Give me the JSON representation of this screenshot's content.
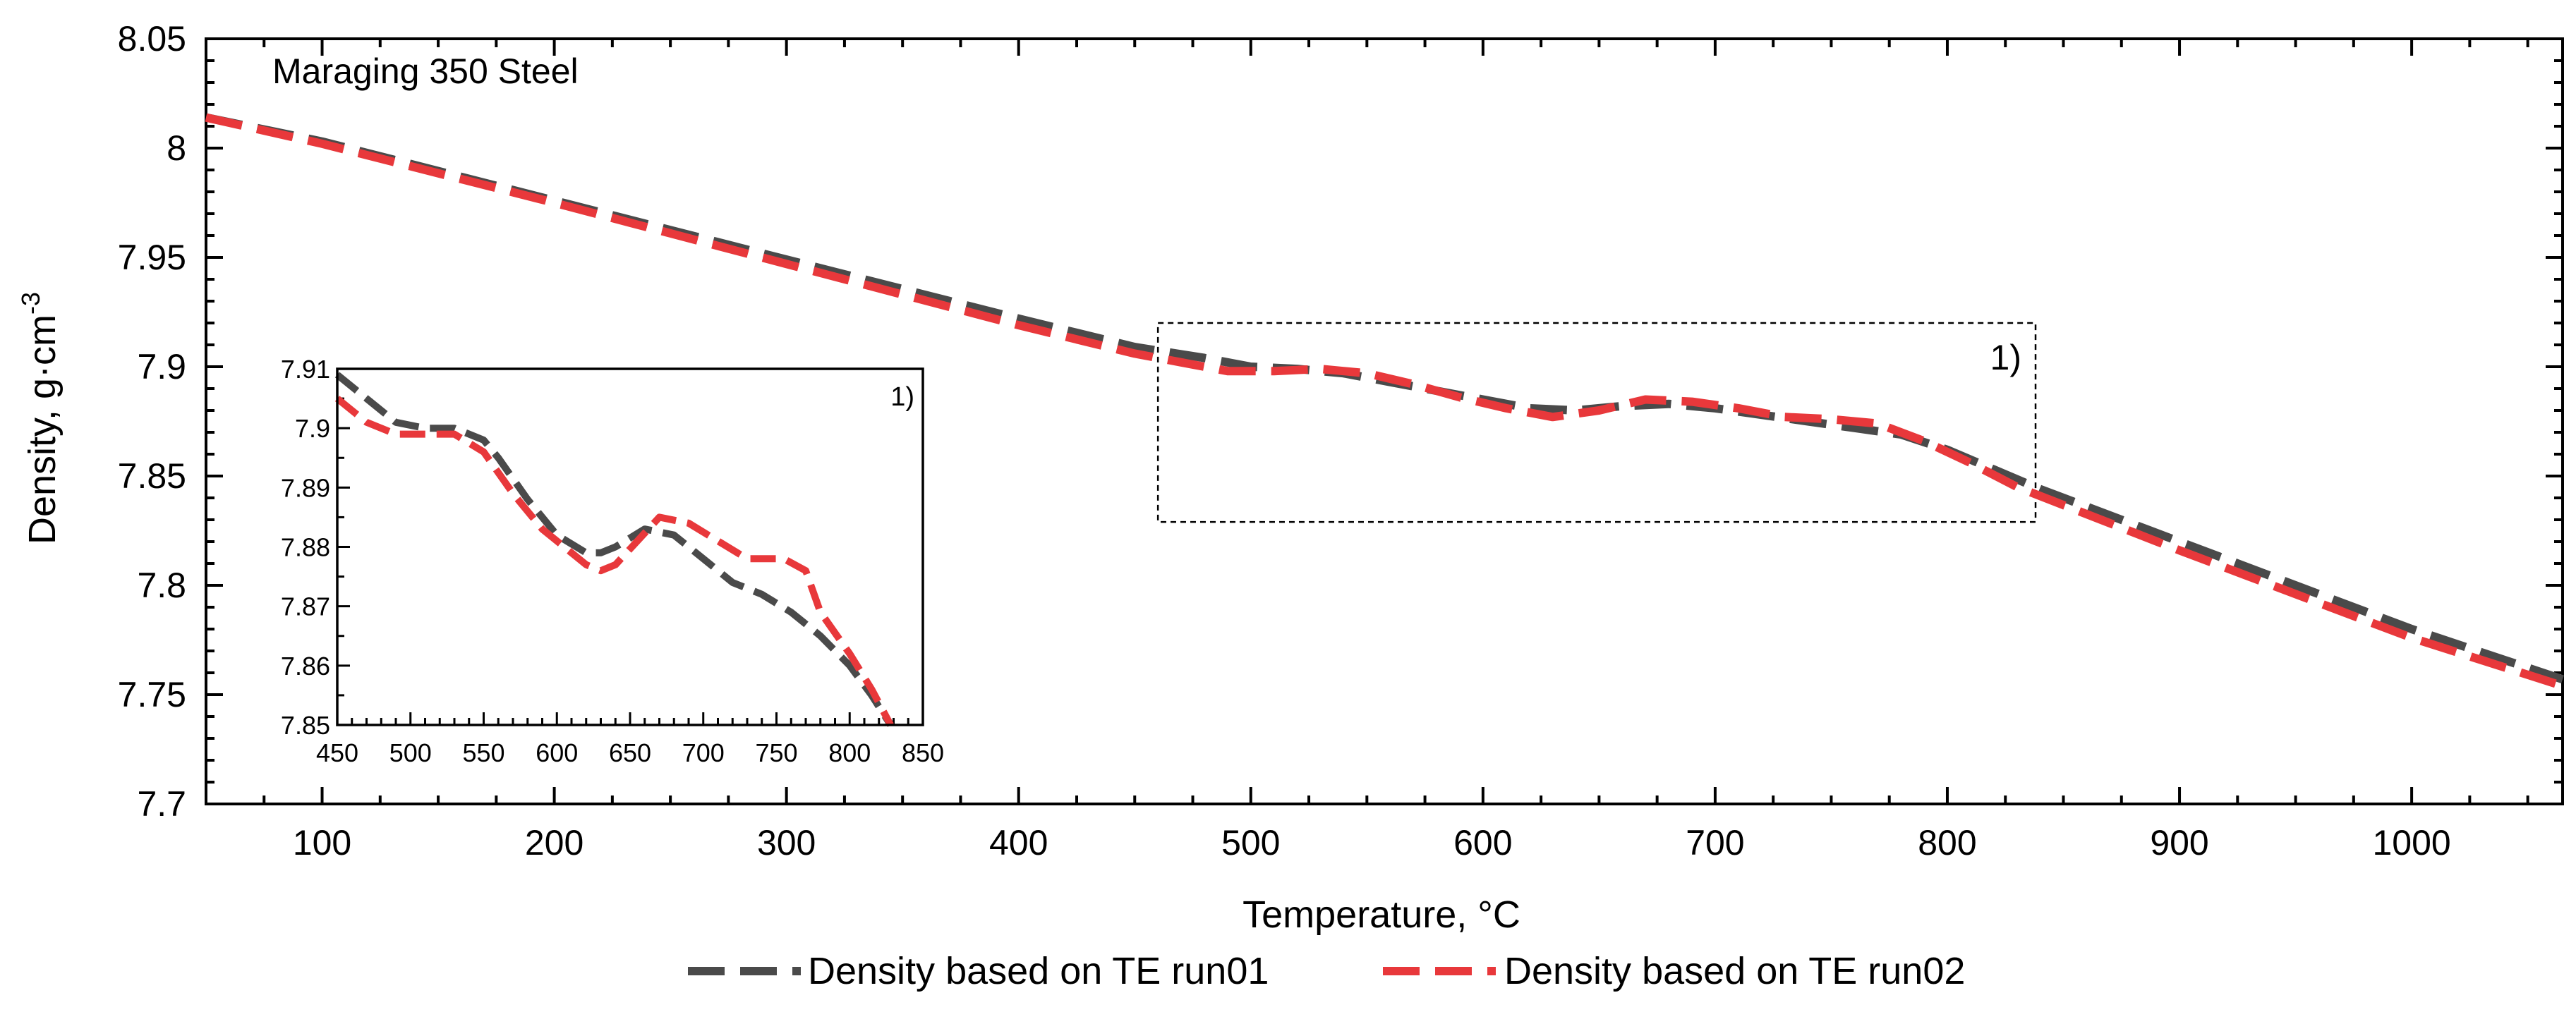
{
  "chart_data": [
    {
      "type": "line",
      "title": "",
      "annotation": "Maraging 350 Steel",
      "xlabel": "Temperature, °C",
      "ylabel_main": "Density, g·cm",
      "ylabel_sup": "-3",
      "xlim": [
        50,
        1065
      ],
      "ylim": [
        7.7,
        8.05
      ],
      "xticks": [
        100,
        200,
        300,
        400,
        500,
        600,
        700,
        800,
        900,
        1000
      ],
      "yticks": [
        7.7,
        7.75,
        7.8,
        7.85,
        7.9,
        7.95,
        8,
        8.05
      ],
      "ytick_labels": [
        "7.7",
        "7.75",
        "7.8",
        "7.85",
        "7.9",
        "7.95",
        "8",
        "8.05"
      ],
      "zoom_box": {
        "x": [
          460,
          838
        ],
        "y": [
          7.829,
          7.92
        ],
        "label": "1)"
      },
      "legend": {
        "placement": "bottom",
        "entries": [
          "Density based on TE run01",
          "Density based on TE run02"
        ]
      },
      "series": [
        {
          "name": "Density based on TE run01",
          "color": "#4a4a4a",
          "x": [
            50,
            100,
            200,
            300,
            400,
            450,
            480,
            500,
            520,
            540,
            560,
            580,
            600,
            620,
            640,
            660,
            680,
            700,
            720,
            740,
            760,
            780,
            800,
            820,
            840,
            900,
            1000,
            1065
          ],
          "y": [
            8.014,
            8.003,
            7.976,
            7.949,
            7.922,
            7.909,
            7.904,
            7.9,
            7.899,
            7.897,
            7.893,
            7.889,
            7.885,
            7.881,
            7.88,
            7.882,
            7.883,
            7.881,
            7.878,
            7.875,
            7.872,
            7.869,
            7.862,
            7.853,
            7.844,
            7.82,
            7.78,
            7.757
          ]
        },
        {
          "name": "Density based on TE run02",
          "color": "#e8383b",
          "x": [
            50,
            100,
            200,
            300,
            400,
            450,
            470,
            490,
            510,
            530,
            550,
            570,
            590,
            610,
            630,
            650,
            670,
            690,
            710,
            730,
            750,
            770,
            790,
            810,
            830,
            900,
            1000,
            1065
          ],
          "y": [
            8.014,
            8.002,
            7.975,
            7.947,
            7.919,
            7.906,
            7.902,
            7.898,
            7.898,
            7.899,
            7.897,
            7.892,
            7.886,
            7.881,
            7.877,
            7.88,
            7.885,
            7.884,
            7.881,
            7.877,
            7.876,
            7.874,
            7.866,
            7.856,
            7.845,
            7.816,
            7.776,
            7.754
          ]
        }
      ]
    },
    {
      "type": "line",
      "title": "",
      "annotation": "1)",
      "xlim": [
        450,
        850
      ],
      "ylim": [
        7.85,
        7.91
      ],
      "xticks": [
        450,
        500,
        550,
        600,
        650,
        700,
        750,
        800,
        850
      ],
      "yticks": [
        7.85,
        7.86,
        7.87,
        7.88,
        7.89,
        7.9,
        7.91
      ],
      "ytick_labels": [
        "7.85",
        "7.86",
        "7.87",
        "7.88",
        "7.89",
        "7.9",
        "7.91"
      ],
      "series": [
        {
          "name": "Density based on TE run01",
          "color": "#4a4a4a",
          "x": [
            450,
            470,
            490,
            510,
            530,
            550,
            560,
            580,
            600,
            620,
            630,
            640,
            660,
            680,
            700,
            720,
            740,
            760,
            780,
            800,
            815,
            828
          ],
          "y": [
            7.909,
            7.905,
            7.901,
            7.9,
            7.9,
            7.898,
            7.895,
            7.888,
            7.882,
            7.879,
            7.879,
            7.88,
            7.883,
            7.882,
            7.878,
            7.874,
            7.872,
            7.869,
            7.865,
            7.86,
            7.855,
            7.85
          ]
        },
        {
          "name": "Density based on TE run02",
          "color": "#e8383b",
          "x": [
            450,
            470,
            490,
            510,
            530,
            550,
            570,
            590,
            610,
            620,
            630,
            640,
            655,
            670,
            690,
            710,
            730,
            755,
            770,
            780,
            800,
            815,
            828
          ],
          "y": [
            7.905,
            7.901,
            7.899,
            7.899,
            7.899,
            7.896,
            7.889,
            7.883,
            7.879,
            7.877,
            7.876,
            7.877,
            7.881,
            7.885,
            7.884,
            7.881,
            7.878,
            7.878,
            7.876,
            7.869,
            7.862,
            7.856,
            7.85
          ]
        }
      ]
    }
  ]
}
